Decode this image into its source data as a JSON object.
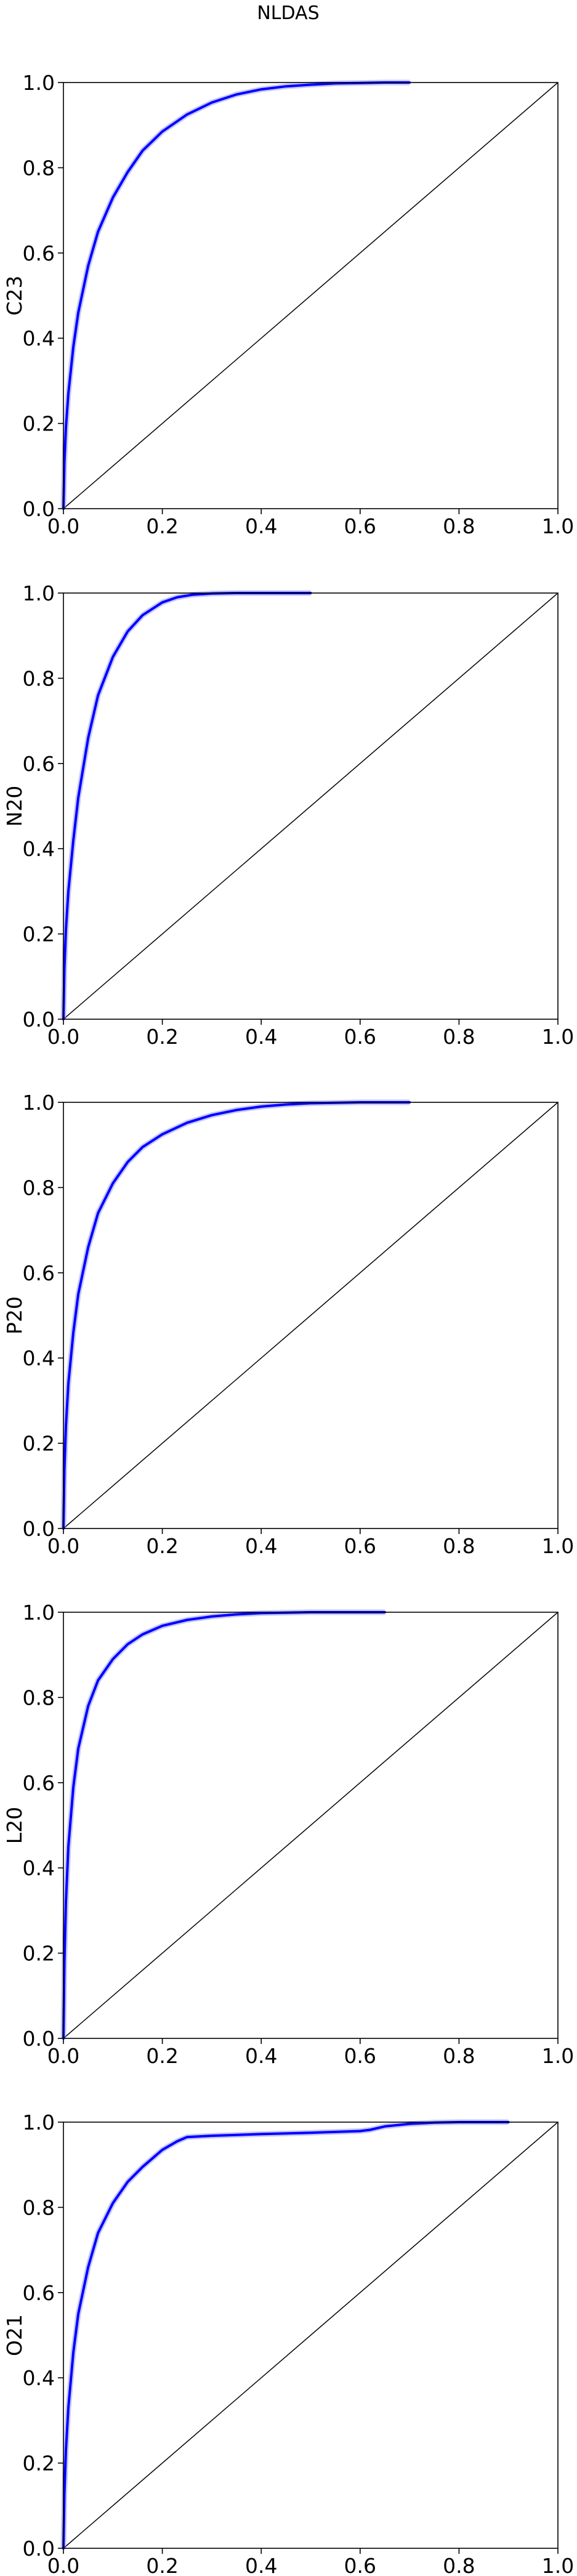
{
  "figure": {
    "title": "NLDAS",
    "colors": {
      "curve": "#0000ff",
      "band": "#8080ff",
      "diagonal": "#000000",
      "axes": "#000000",
      "background": "#ffffff"
    }
  },
  "chart_data": [
    {
      "type": "line",
      "ylabel": "C23",
      "xlim": [
        0,
        1
      ],
      "ylim": [
        0,
        1
      ],
      "xticks": [
        "0.0",
        "0.2",
        "0.4",
        "0.6",
        "0.8",
        "1.0"
      ],
      "yticks": [
        "0.0",
        "0.2",
        "0.4",
        "0.6",
        "0.8",
        "1.0"
      ],
      "grid": false,
      "series": [
        {
          "x": [
            0,
            0.002,
            0.005,
            0.01,
            0.02,
            0.03,
            0.05,
            0.07,
            0.1,
            0.13,
            0.16,
            0.2,
            0.25,
            0.3,
            0.35,
            0.4,
            0.45,
            0.5,
            0.55,
            0.6,
            0.65,
            0.7
          ],
          "y": [
            0,
            0.11,
            0.19,
            0.27,
            0.38,
            0.46,
            0.57,
            0.65,
            0.73,
            0.79,
            0.84,
            0.885,
            0.925,
            0.953,
            0.972,
            0.984,
            0.991,
            0.995,
            0.998,
            0.999,
            1.0,
            1.0
          ]
        },
        {
          "x": [
            0,
            1
          ],
          "y": [
            0,
            1
          ]
        }
      ]
    },
    {
      "type": "line",
      "ylabel": "N20",
      "xlim": [
        0,
        1
      ],
      "ylim": [
        0,
        1
      ],
      "xticks": [
        "0.0",
        "0.2",
        "0.4",
        "0.6",
        "0.8",
        "1.0"
      ],
      "yticks": [
        "0.0",
        "0.2",
        "0.4",
        "0.6",
        "0.8",
        "1.0"
      ],
      "grid": false,
      "series": [
        {
          "x": [
            0,
            0.002,
            0.005,
            0.01,
            0.02,
            0.03,
            0.05,
            0.07,
            0.1,
            0.13,
            0.16,
            0.2,
            0.23,
            0.26,
            0.3,
            0.35,
            0.4,
            0.45,
            0.5
          ],
          "y": [
            0,
            0.12,
            0.21,
            0.3,
            0.42,
            0.52,
            0.66,
            0.76,
            0.85,
            0.91,
            0.948,
            0.978,
            0.99,
            0.996,
            0.999,
            1.0,
            1.0,
            1.0,
            1.0
          ]
        },
        {
          "x": [
            0,
            1
          ],
          "y": [
            0,
            1
          ]
        }
      ]
    },
    {
      "type": "line",
      "ylabel": "P20",
      "xlim": [
        0,
        1
      ],
      "ylim": [
        0,
        1
      ],
      "xticks": [
        "0.0",
        "0.2",
        "0.4",
        "0.6",
        "0.8",
        "1.0"
      ],
      "yticks": [
        "0.0",
        "0.2",
        "0.4",
        "0.6",
        "0.8",
        "1.0"
      ],
      "grid": false,
      "series": [
        {
          "x": [
            0,
            0.002,
            0.005,
            0.01,
            0.02,
            0.03,
            0.05,
            0.07,
            0.1,
            0.13,
            0.16,
            0.2,
            0.25,
            0.3,
            0.35,
            0.4,
            0.45,
            0.5,
            0.55,
            0.6,
            0.65,
            0.7
          ],
          "y": [
            0,
            0.14,
            0.24,
            0.34,
            0.46,
            0.55,
            0.66,
            0.74,
            0.81,
            0.86,
            0.895,
            0.925,
            0.952,
            0.97,
            0.982,
            0.99,
            0.995,
            0.998,
            0.999,
            1.0,
            1.0,
            1.0
          ]
        },
        {
          "x": [
            0,
            1
          ],
          "y": [
            0,
            1
          ]
        }
      ]
    },
    {
      "type": "line",
      "ylabel": "L20",
      "xlim": [
        0,
        1
      ],
      "ylim": [
        0,
        1
      ],
      "xticks": [
        "0.0",
        "0.2",
        "0.4",
        "0.6",
        "0.8",
        "1.0"
      ],
      "yticks": [
        "0.0",
        "0.2",
        "0.4",
        "0.6",
        "0.8",
        "1.0"
      ],
      "grid": false,
      "series": [
        {
          "x": [
            0,
            0.002,
            0.005,
            0.01,
            0.02,
            0.03,
            0.05,
            0.07,
            0.1,
            0.13,
            0.16,
            0.2,
            0.25,
            0.3,
            0.35,
            0.4,
            0.45,
            0.5,
            0.55,
            0.6,
            0.65
          ],
          "y": [
            0,
            0.18,
            0.32,
            0.45,
            0.59,
            0.68,
            0.78,
            0.84,
            0.89,
            0.925,
            0.948,
            0.968,
            0.982,
            0.99,
            0.995,
            0.998,
            0.999,
            1.0,
            1.0,
            1.0,
            1.0
          ]
        },
        {
          "x": [
            0,
            1
          ],
          "y": [
            0,
            1
          ]
        }
      ]
    },
    {
      "type": "line",
      "ylabel": "O21",
      "xlim": [
        0,
        1
      ],
      "ylim": [
        0,
        1
      ],
      "xticks": [
        "0.0",
        "0.2",
        "0.4",
        "0.6",
        "0.8",
        "1.0"
      ],
      "yticks": [
        "0.0",
        "0.2",
        "0.4",
        "0.6",
        "0.8",
        "1.0"
      ],
      "grid": false,
      "series": [
        {
          "x": [
            0,
            0.002,
            0.005,
            0.01,
            0.02,
            0.03,
            0.05,
            0.07,
            0.1,
            0.13,
            0.16,
            0.2,
            0.23,
            0.25,
            0.3,
            0.4,
            0.5,
            0.6,
            0.62,
            0.65,
            0.7,
            0.75,
            0.8,
            0.85,
            0.9
          ],
          "y": [
            0,
            0.13,
            0.23,
            0.33,
            0.46,
            0.55,
            0.66,
            0.74,
            0.81,
            0.86,
            0.895,
            0.935,
            0.955,
            0.965,
            0.968,
            0.972,
            0.975,
            0.979,
            0.982,
            0.99,
            0.996,
            0.999,
            1.0,
            1.0,
            1.0
          ]
        },
        {
          "x": [
            0,
            1
          ],
          "y": [
            0,
            1
          ]
        }
      ]
    }
  ]
}
